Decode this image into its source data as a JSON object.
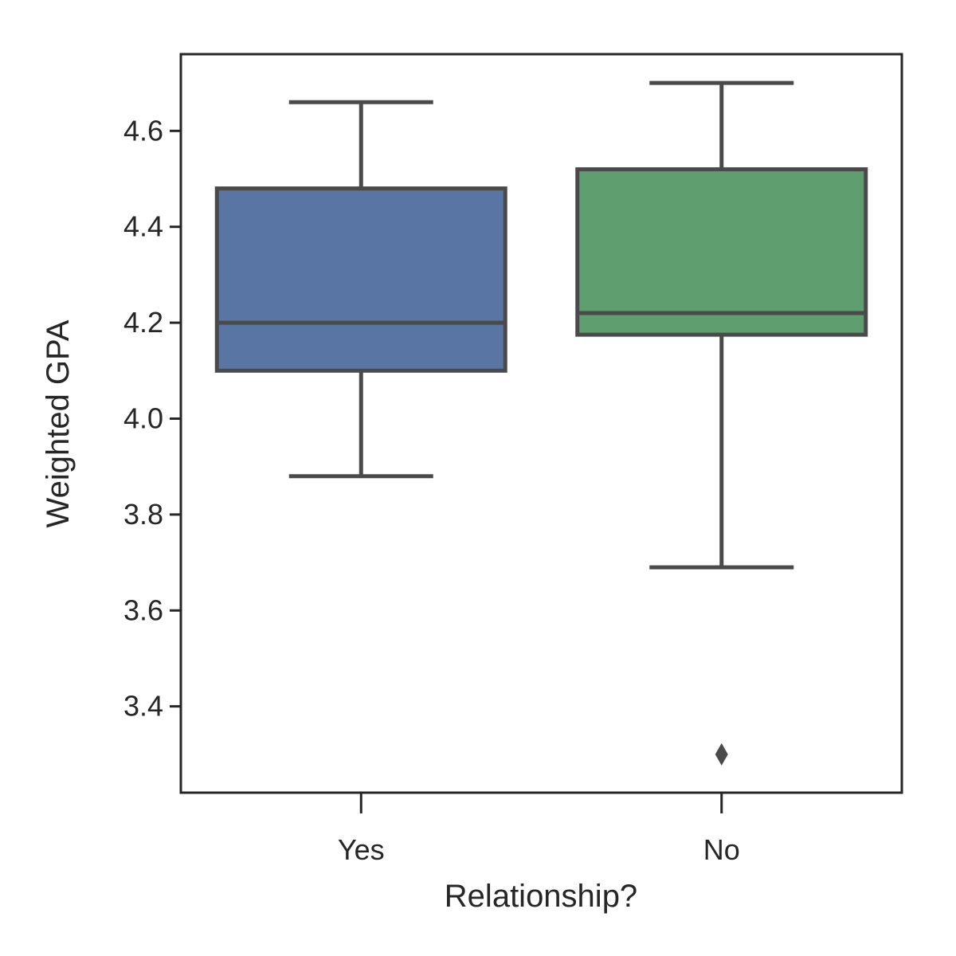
{
  "chart_data": {
    "type": "box",
    "title": "",
    "xlabel": "Relationship?",
    "ylabel": "Weighted GPA",
    "categories": [
      "Yes",
      "No"
    ],
    "colors": [
      "#5975a4",
      "#5f9e6e"
    ],
    "edge_color": "#4a4a4a",
    "ylim": [
      3.22,
      4.76
    ],
    "yticks": [
      3.4,
      3.6,
      3.8,
      4.0,
      4.2,
      4.4,
      4.6
    ],
    "ytick_labels": [
      "3.4",
      "3.6",
      "3.8",
      "4.0",
      "4.2",
      "4.4",
      "4.6"
    ],
    "grid": false,
    "boxes": [
      {
        "category": "Yes",
        "whisker_low": 3.88,
        "q1": 4.1,
        "median": 4.2,
        "q3": 4.48,
        "whisker_high": 4.66,
        "outliers": []
      },
      {
        "category": "No",
        "whisker_low": 3.69,
        "q1": 4.175,
        "median": 4.22,
        "q3": 4.52,
        "whisker_high": 4.7,
        "outliers": [
          3.3
        ]
      }
    ]
  }
}
